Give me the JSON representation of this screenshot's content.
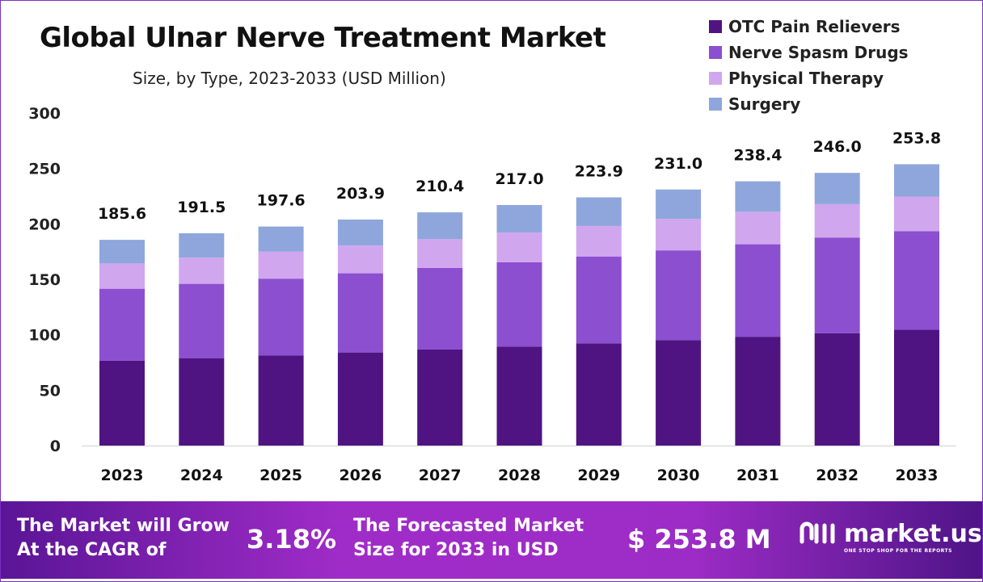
{
  "chart_data": {
    "type": "bar",
    "stacked": true,
    "title": "Global Ulnar Nerve Treatment Market",
    "subtitle": "Size, by Type, 2023-2033 (USD Million)",
    "xlabel": "",
    "ylabel": "",
    "ylim": [
      0,
      300
    ],
    "yticks": [
      0,
      50,
      100,
      150,
      200,
      250,
      300
    ],
    "grid": false,
    "legend_position": "top-right",
    "categories": [
      "2023",
      "2024",
      "2025",
      "2026",
      "2027",
      "2028",
      "2029",
      "2030",
      "2031",
      "2032",
      "2033"
    ],
    "totals": [
      "185.6",
      "191.5",
      "197.6",
      "203.9",
      "210.4",
      "217.0",
      "223.9",
      "231.0",
      "238.4",
      "246.0",
      "253.8"
    ],
    "series": [
      {
        "name": "OTC Pain Relievers",
        "color": "#4f1482",
        "values": [
          76.5,
          78.9,
          81.4,
          84.0,
          86.7,
          89.4,
          92.2,
          95.2,
          98.2,
          101.4,
          104.6
        ]
      },
      {
        "name": "Nerve Spasm Drugs",
        "color": "#8b4fd0",
        "values": [
          65.0,
          67.0,
          69.2,
          71.4,
          73.6,
          76.0,
          78.4,
          80.9,
          83.4,
          86.1,
          88.8
        ]
      },
      {
        "name": "Physical Therapy",
        "color": "#d0a6ee",
        "values": [
          22.8,
          23.6,
          24.3,
          25.1,
          25.9,
          26.7,
          27.5,
          28.4,
          29.3,
          30.3,
          31.2
        ]
      },
      {
        "name": "Surgery",
        "color": "#8fa6dc",
        "values": [
          21.3,
          22.0,
          22.7,
          23.4,
          24.2,
          24.9,
          25.8,
          26.5,
          27.5,
          28.2,
          29.2
        ]
      }
    ]
  },
  "footer": {
    "cagr_label_1": "The Market will Grow",
    "cagr_label_2": "At the CAGR of",
    "cagr_value": "3.18%",
    "forecast_label_1": "The Forecasted Market",
    "forecast_label_2": "Size for 2033 in USD",
    "forecast_value": "$ 253.8 M",
    "logo_name": "market.us",
    "logo_tagline": "ONE STOP SHOP FOR THE REPORTS"
  }
}
